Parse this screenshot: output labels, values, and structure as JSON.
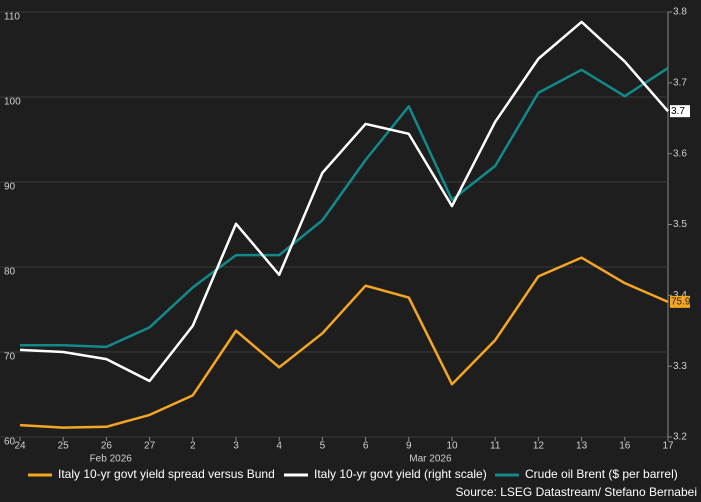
{
  "chart_data": {
    "type": "line",
    "categories": [
      "24",
      "25",
      "26",
      "27",
      "2",
      "3",
      "4",
      "5",
      "6",
      "9",
      "10",
      "11",
      "12",
      "13",
      "16",
      "17"
    ],
    "x_group_labels": [
      "Feb 2026",
      "Mar 2026"
    ],
    "ylim": [
      60,
      110
    ],
    "yticks": [
      60,
      70,
      80,
      90,
      100,
      110
    ],
    "y2lim": [
      3.2,
      3.8
    ],
    "y2ticks": [
      3.2,
      3.3,
      3.4,
      3.5,
      3.6,
      3.7,
      3.8
    ],
    "grid": true,
    "series": [
      {
        "name": "Italy 10-yr govt yield spread versus Bund",
        "color": "#f5a623",
        "values": [
          61.4,
          61.1,
          61.2,
          62.6,
          64.9,
          72.5,
          68.2,
          72.2,
          77.8,
          76.4,
          66.2,
          71.4,
          78.9,
          81.1,
          78.1,
          75.9
        ],
        "value_labels": [
          null,
          null,
          null,
          null,
          null,
          null,
          null,
          null,
          null,
          null,
          null,
          null,
          null,
          null,
          null,
          "75.9"
        ]
      },
      {
        "name": "Italy 10-yr govt yield (right scale)",
        "color": "#ffffff",
        "axis": "y2",
        "values": [
          3.323,
          3.32,
          3.31,
          3.279,
          3.357,
          3.501,
          3.429,
          3.573,
          3.642,
          3.628,
          3.526,
          3.645,
          3.734,
          3.786,
          3.73,
          3.66
        ],
        "value_labels": [
          null,
          null,
          null,
          null,
          null,
          null,
          null,
          null,
          null,
          null,
          null,
          null,
          null,
          null,
          null,
          "3.7"
        ]
      },
      {
        "name": "Crude oil Brent ($ per barrel)",
        "color": "#138a8a",
        "values": [
          70.8,
          70.8,
          70.6,
          72.9,
          77.6,
          81.4,
          81.4,
          85.5,
          92.6,
          98.9,
          87.9,
          91.9,
          100.5,
          103.2,
          100.1,
          103.4
        ]
      }
    ],
    "source": "Source: LSEG Datastream/ Stefano Bernabei"
  }
}
